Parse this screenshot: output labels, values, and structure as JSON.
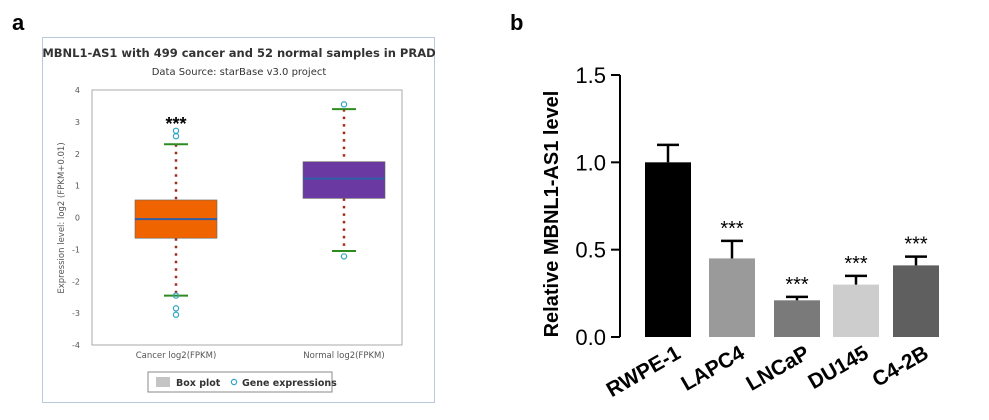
{
  "panel_a_label": "a",
  "panel_b_label": "b",
  "chart_data": [
    {
      "type": "box",
      "title": "MBNL1-AS1 with 499 cancer and 52 normal samples in PRAD",
      "subtitle": "Data Source: starBase v3.0 project",
      "ylabel": "Expression level: log2 (FPKM+0.01)",
      "ylim": [
        -4,
        4
      ],
      "yticks": [
        4,
        3,
        2,
        1,
        0,
        -1,
        -2,
        -3,
        -4
      ],
      "categories": [
        "Cancer log2(FPKM)",
        "Normal log2(FPKM)"
      ],
      "boxes": [
        {
          "name": "Cancer log2(FPKM)",
          "whisker_low": -2.45,
          "q1": -0.65,
          "median": -0.05,
          "q3": 0.55,
          "whisker_high": 2.3,
          "color": "#f06400"
        },
        {
          "name": "Normal log2(FPKM)",
          "whisker_low": -1.05,
          "q1": 0.6,
          "median": 1.22,
          "q3": 1.75,
          "whisker_high": 3.4,
          "color": "#6a3aa2"
        }
      ],
      "outliers": [
        {
          "box": 0,
          "values": [
            2.72,
            2.55,
            -2.45,
            -2.85,
            -3.05
          ]
        },
        {
          "box": 1,
          "values": [
            3.55,
            -1.22
          ]
        }
      ],
      "annotations": [
        {
          "box": 0,
          "text": "***"
        }
      ],
      "legend": {
        "box_label": "Box plot",
        "points_label": "Gene expressions",
        "position": "bottom-center"
      },
      "colors": {
        "whisker_cap": "#2e8b1f",
        "median": "#2f5fa8",
        "dots": "#a22a1a",
        "outlier": "#2ea3c4"
      }
    },
    {
      "type": "bar",
      "ylabel": "Relative MBNL1-AS1 level",
      "ylim": [
        0,
        1.5
      ],
      "yticks": [
        "0.0",
        "0.5",
        "1.0",
        "1.5"
      ],
      "categories": [
        "RWPE-1",
        "LAPC4",
        "LNCaP",
        "DU145",
        "C4-2B"
      ],
      "values": [
        1.0,
        0.45,
        0.21,
        0.3,
        0.41
      ],
      "errors": [
        0.1,
        0.1,
        0.02,
        0.05,
        0.05
      ],
      "annotations": [
        "",
        "***",
        "***",
        "***",
        "***"
      ],
      "colors": [
        "#000000",
        "#9a9a9a",
        "#7a7a7a",
        "#cdcdcd",
        "#5f5f5f"
      ]
    }
  ]
}
